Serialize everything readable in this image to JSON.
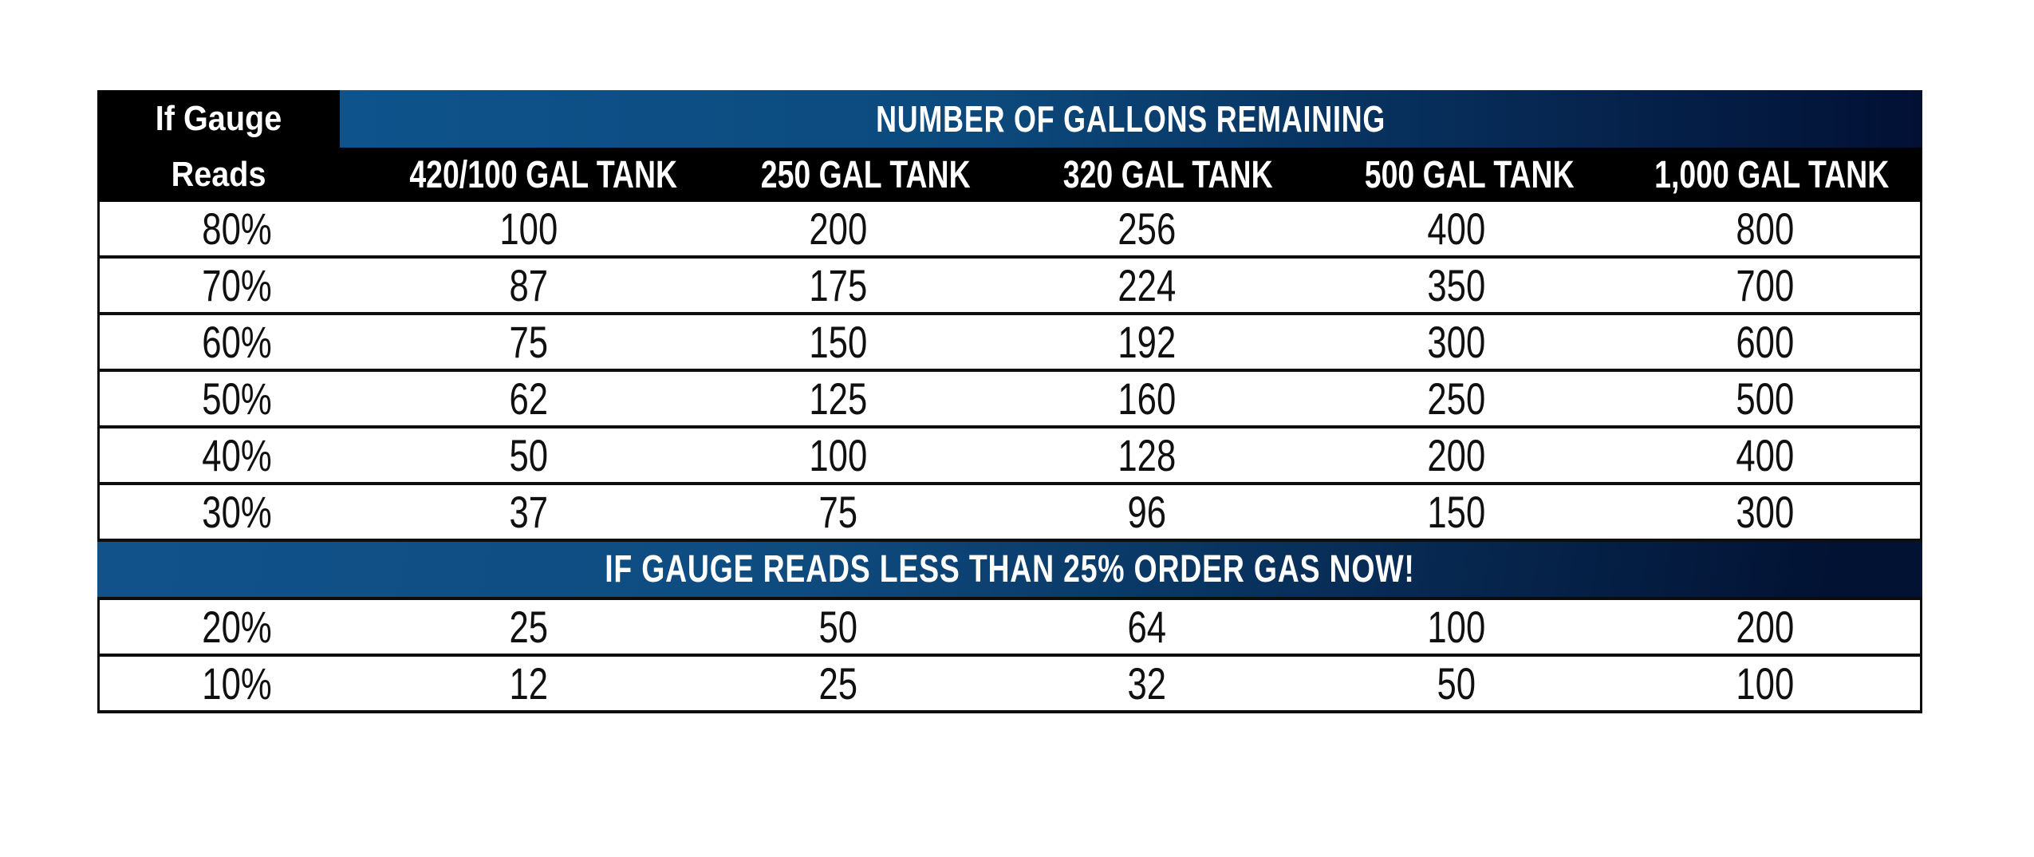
{
  "table": {
    "corner": {
      "line1": "If Gauge",
      "line2": "Reads"
    },
    "group_header": "NUMBER OF GALLONS REMAINING",
    "columns": [
      "420/100 GAL TANK",
      "250 GAL TANK",
      "320 GAL TANK",
      "500 GAL TANK",
      "1,000 GAL TANK"
    ],
    "rows": [
      {
        "label": "80%",
        "values": [
          "100",
          "200",
          "256",
          "400",
          "800"
        ]
      },
      {
        "label": "70%",
        "values": [
          "87",
          "175",
          "224",
          "350",
          "700"
        ]
      },
      {
        "label": "60%",
        "values": [
          "75",
          "150",
          "192",
          "300",
          "600"
        ]
      },
      {
        "label": "50%",
        "values": [
          "62",
          "125",
          "160",
          "250",
          "500"
        ]
      },
      {
        "label": "40%",
        "values": [
          "50",
          "100",
          "128",
          "200",
          "400"
        ]
      },
      {
        "label": "30%",
        "values": [
          "37",
          "75",
          "96",
          "150",
          "300"
        ]
      },
      {
        "label": "20%",
        "values": [
          "25",
          "50",
          "64",
          "100",
          "200"
        ]
      },
      {
        "label": "10%",
        "values": [
          "12",
          "25",
          "32",
          "50",
          "100"
        ]
      }
    ],
    "banner": "IF GAUGE READS LESS THAN 25% ORDER GAS NOW!"
  },
  "colors": {
    "header_blue_left": "#0E538C",
    "header_blue_right": "#020D2F",
    "banner_blue_left": "#11528B",
    "banner_blue_right": "#031233",
    "header_black": "#000000",
    "text_dark": "#101010",
    "text_white": "#FFFFFF"
  },
  "chart_data": {
    "type": "table",
    "title": "NUMBER OF GALLONS REMAINING",
    "row_label_header": "If Gauge Reads",
    "columns": [
      "420/100 GAL TANK",
      "250 GAL TANK",
      "320 GAL TANK",
      "500 GAL TANK",
      "1,000 GAL TANK"
    ],
    "rows": [
      {
        "gauge": "80%",
        "values": [
          100,
          200,
          256,
          400,
          800
        ]
      },
      {
        "gauge": "70%",
        "values": [
          87,
          175,
          224,
          350,
          700
        ]
      },
      {
        "gauge": "60%",
        "values": [
          75,
          150,
          192,
          300,
          600
        ]
      },
      {
        "gauge": "50%",
        "values": [
          62,
          125,
          160,
          250,
          500
        ]
      },
      {
        "gauge": "40%",
        "values": [
          50,
          100,
          128,
          200,
          400
        ]
      },
      {
        "gauge": "30%",
        "values": [
          37,
          75,
          96,
          150,
          300
        ]
      },
      {
        "gauge": "20%",
        "values": [
          25,
          50,
          64,
          100,
          200
        ]
      },
      {
        "gauge": "10%",
        "values": [
          12,
          25,
          32,
          50,
          100
        ]
      }
    ],
    "banner_text": "IF GAUGE READS LESS THAN 25% ORDER GAS NOW!",
    "banner_position": "between 30% and 20% rows",
    "layout": {
      "grid": "horizontal row dividers only",
      "header_style": "black band with blue gradient title bars"
    }
  }
}
